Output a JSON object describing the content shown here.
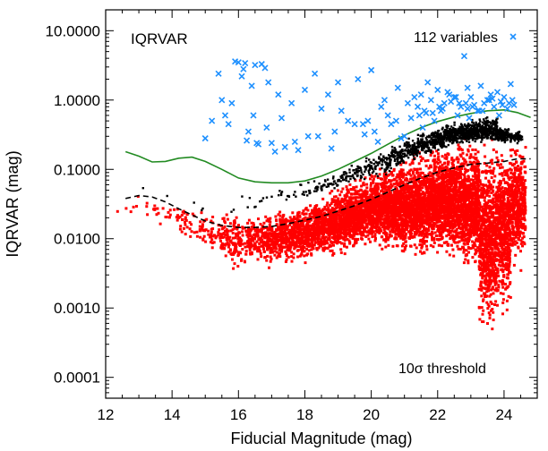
{
  "chart_data": {
    "type": "scatter",
    "xlabel": "Fiducial Magnitude (mag)",
    "ylabel": "IQRVAR (mag)",
    "xlim": [
      12,
      25
    ],
    "ylim": [
      5e-05,
      20
    ],
    "y_scale": "log",
    "grid": false,
    "xticks": [
      12,
      14,
      16,
      18,
      20,
      22,
      24
    ],
    "xtick_labels": [
      "12",
      "14",
      "16",
      "18",
      "20",
      "22",
      "24"
    ],
    "yticks": [
      0.0001,
      0.001,
      0.01,
      0.1,
      1,
      10
    ],
    "ytick_labels": [
      "0.0001",
      "0.0010",
      "0.0100",
      "0.1000",
      "1.0000",
      "10.0000"
    ],
    "annotations": {
      "panel_label": "IQRVAR",
      "variables_label": "112 variables",
      "threshold_label": "10σ threshold"
    },
    "colors": {
      "variables": "#1e90ff",
      "nonvariables_black": "#000000",
      "nonvariables_red": "#ff0000",
      "threshold_line": "#228b22",
      "median_line": "#000000"
    },
    "threshold_curve": {
      "x": [
        12.6,
        13.0,
        13.4,
        13.8,
        14.2,
        14.6,
        15.0,
        15.5,
        16.0,
        16.5,
        17.0,
        17.5,
        18.0,
        18.5,
        19.0,
        19.5,
        20.0,
        20.5,
        21.0,
        21.5,
        22.0,
        22.5,
        23.0,
        23.5,
        24.0,
        24.4,
        24.8
      ],
      "y": [
        0.18,
        0.155,
        0.128,
        0.13,
        0.145,
        0.15,
        0.13,
        0.1,
        0.075,
        0.066,
        0.064,
        0.064,
        0.068,
        0.08,
        0.1,
        0.13,
        0.17,
        0.23,
        0.31,
        0.4,
        0.49,
        0.57,
        0.64,
        0.7,
        0.72,
        0.66,
        0.56
      ]
    },
    "median_curve": {
      "x": [
        12.6,
        13.0,
        13.4,
        13.8,
        14.2,
        14.6,
        15.0,
        15.5,
        16.0,
        16.5,
        17.0,
        17.5,
        18.0,
        18.5,
        19.0,
        19.5,
        20.0,
        20.5,
        21.0,
        21.5,
        22.0,
        22.5,
        23.0,
        23.5,
        24.0,
        24.4,
        24.8
      ],
      "y": [
        0.038,
        0.042,
        0.04,
        0.034,
        0.027,
        0.022,
        0.018,
        0.0155,
        0.0145,
        0.0145,
        0.015,
        0.0165,
        0.0185,
        0.021,
        0.025,
        0.03,
        0.037,
        0.047,
        0.06,
        0.075,
        0.091,
        0.105,
        0.118,
        0.123,
        0.13,
        0.142,
        0.142
      ]
    },
    "variables": {
      "name": "112 variables",
      "x": [
        15.0,
        15.4,
        15.5,
        15.6,
        15.7,
        15.9,
        16.0,
        16.1,
        16.2,
        16.3,
        16.4,
        16.5,
        16.6,
        16.7,
        16.8,
        16.9,
        17.0,
        17.2,
        17.4,
        17.6,
        17.8,
        18.0,
        18.3,
        18.5,
        18.8,
        19.0,
        19.3,
        19.6,
        19.8,
        20.0,
        20.2,
        20.4,
        20.6,
        20.8,
        21.0,
        21.2,
        21.4,
        21.5,
        21.6,
        21.7,
        21.8,
        21.9,
        22.0,
        22.1,
        22.2,
        22.3,
        22.4,
        22.5,
        22.6,
        22.7,
        22.8,
        22.9,
        23.0,
        23.1,
        23.2,
        23.3,
        23.4,
        23.5,
        23.6,
        23.7,
        23.8,
        23.9,
        24.0,
        24.1,
        24.2,
        24.3,
        15.2,
        15.8,
        16.15,
        16.45,
        16.85,
        17.3,
        17.7,
        18.1,
        18.7,
        19.1,
        19.5,
        20.1,
        20.5,
        20.9,
        21.3,
        21.55,
        21.85,
        22.05,
        22.35,
        22.65,
        22.95,
        23.25,
        23.55,
        23.85,
        24.15,
        16.25,
        16.55,
        17.1,
        18.4,
        19.9,
        20.3,
        21.1,
        21.65,
        22.15,
        22.55,
        22.85,
        23.05,
        23.35,
        23.65,
        23.95,
        24.25,
        22.9,
        21.45,
        20.75,
        19.75,
        18.9
      ],
      "y": [
        0.28,
        2.4,
        1.0,
        0.6,
        0.45,
        3.6,
        3.5,
        2.2,
        3.4,
        0.35,
        1.6,
        3.2,
        0.23,
        3.3,
        2.9,
        1.8,
        0.24,
        1.2,
        0.21,
        0.9,
        0.19,
        1.4,
        2.4,
        0.75,
        0.2,
        1.8,
        0.5,
        2.0,
        0.32,
        2.7,
        0.25,
        1.0,
        0.45,
        1.5,
        0.3,
        0.55,
        0.8,
        1.2,
        0.7,
        1.8,
        1.0,
        0.5,
        1.4,
        0.7,
        0.9,
        1.3,
        0.95,
        1.1,
        0.6,
        0.8,
        4.3,
        1.5,
        1.1,
        0.85,
        0.7,
        1.6,
        0.9,
        1.0,
        1.2,
        0.8,
        1.3,
        0.95,
        1.1,
        0.75,
        1.7,
        0.85,
        0.5,
        0.9,
        2.8,
        0.6,
        0.4,
        0.55,
        0.25,
        0.3,
        1.2,
        0.7,
        0.45,
        0.35,
        0.6,
        0.28,
        1.1,
        0.4,
        0.65,
        0.8,
        1.2,
        0.9,
        0.55,
        0.7,
        1.0,
        0.6,
        0.9,
        0.26,
        0.24,
        0.18,
        0.3,
        0.5,
        0.8,
        0.9,
        0.65,
        0.75,
        1.1,
        0.9,
        0.8,
        0.7,
        1.05,
        0.85,
        1.0,
        0.75,
        0.6,
        0.5,
        0.45,
        0.35
      ]
    },
    "nonvariables_above_median": {
      "x": [
        13.2,
        14.0,
        14.5,
        15.1,
        15.6,
        16.2,
        16.8,
        17.4,
        18.0,
        18.4,
        18.8,
        19.2,
        19.6,
        20.0,
        20.4,
        20.8,
        21.2,
        21.6,
        22.0,
        22.4,
        22.8,
        23.2,
        23.6,
        24.0,
        24.3
      ],
      "y_min": [
        0.05,
        0.04,
        0.03,
        0.025,
        0.022,
        0.025,
        0.025,
        0.03,
        0.035,
        0.04,
        0.045,
        0.05,
        0.06,
        0.07,
        0.08,
        0.1,
        0.12,
        0.15,
        0.18,
        0.2,
        0.22,
        0.23,
        0.23,
        0.22,
        0.22
      ],
      "y_max": [
        0.055,
        0.045,
        0.035,
        0.03,
        0.03,
        0.045,
        0.055,
        0.06,
        0.07,
        0.08,
        0.09,
        0.11,
        0.13,
        0.16,
        0.2,
        0.25,
        0.3,
        0.35,
        0.42,
        0.48,
        0.52,
        0.56,
        0.6,
        0.45,
        0.38
      ],
      "count_per_bin": [
        1,
        1,
        1,
        2,
        2,
        4,
        6,
        10,
        14,
        18,
        22,
        26,
        30,
        40,
        55,
        70,
        90,
        110,
        130,
        150,
        170,
        180,
        180,
        120,
        60
      ]
    },
    "nonvariables_red": {
      "x": [
        12.6,
        13.0,
        13.5,
        14.0,
        14.5,
        15.0,
        15.5,
        16.0,
        16.5,
        17.0,
        17.5,
        18.0,
        18.5,
        19.0,
        19.5,
        20.0,
        20.5,
        21.0,
        21.5,
        22.0,
        22.5,
        23.0,
        23.5,
        24.0,
        24.4
      ],
      "y_min": [
        0.018,
        0.02,
        0.012,
        0.01,
        0.008,
        0.006,
        0.0045,
        0.003,
        0.004,
        0.0035,
        0.004,
        0.004,
        0.005,
        0.005,
        0.006,
        0.007,
        0.006,
        0.005,
        0.004,
        0.005,
        0.004,
        0.003,
        0.0003,
        0.0007,
        0.003
      ],
      "y_max": [
        0.04,
        0.05,
        0.045,
        0.04,
        0.035,
        0.03,
        0.025,
        0.025,
        0.026,
        0.028,
        0.032,
        0.036,
        0.045,
        0.06,
        0.08,
        0.1,
        0.13,
        0.17,
        0.22,
        0.26,
        0.3,
        0.32,
        0.33,
        0.32,
        0.3
      ],
      "count_per_bin": [
        3,
        5,
        10,
        15,
        25,
        40,
        60,
        90,
        130,
        170,
        220,
        260,
        300,
        340,
        380,
        420,
        460,
        500,
        540,
        580,
        620,
        640,
        640,
        600,
        400
      ]
    }
  }
}
